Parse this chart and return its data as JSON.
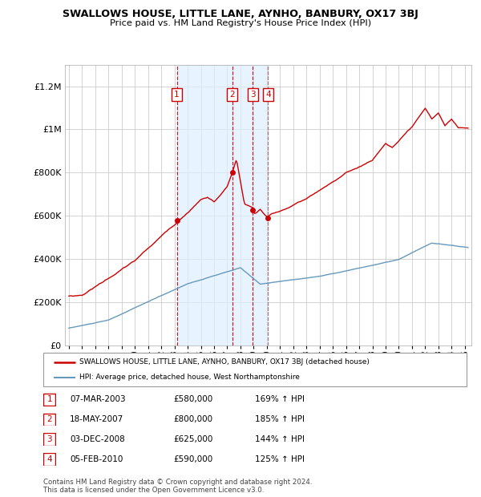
{
  "title": "SWALLOWS HOUSE, LITTLE LANE, AYNHO, BANBURY, OX17 3BJ",
  "subtitle": "Price paid vs. HM Land Registry's House Price Index (HPI)",
  "xlim": [
    1994.7,
    2025.5
  ],
  "ylim": [
    0,
    1300000
  ],
  "yticks": [
    0,
    200000,
    400000,
    600000,
    800000,
    1000000,
    1200000
  ],
  "ytick_labels": [
    "£0",
    "£200K",
    "£400K",
    "£600K",
    "£800K",
    "£1M",
    "£1.2M"
  ],
  "transactions": [
    {
      "num": 1,
      "date": "07-MAR-2003",
      "year": 2003.18,
      "price": 580000,
      "pct": "169%",
      "arrow": "↑"
    },
    {
      "num": 2,
      "date": "18-MAY-2007",
      "year": 2007.38,
      "price": 800000,
      "pct": "185%",
      "arrow": "↑"
    },
    {
      "num": 3,
      "date": "03-DEC-2008",
      "year": 2008.92,
      "price": 625000,
      "pct": "144%",
      "arrow": "↑"
    },
    {
      "num": 4,
      "date": "05-FEB-2010",
      "year": 2010.1,
      "price": 590000,
      "pct": "125%",
      "arrow": "↑"
    }
  ],
  "legend_line1": "SWALLOWS HOUSE, LITTLE LANE, AYNHO, BANBURY, OX17 3BJ (detached house)",
  "legend_line2": "HPI: Average price, detached house, West Northamptonshire",
  "footer1": "Contains HM Land Registry data © Crown copyright and database right 2024.",
  "footer2": "This data is licensed under the Open Government Licence v3.0.",
  "red_color": "#cc0000",
  "blue_color": "#6699bb",
  "bg_color": "#ffffff",
  "grid_color": "#cccccc",
  "shade_color": "#ddeeff"
}
